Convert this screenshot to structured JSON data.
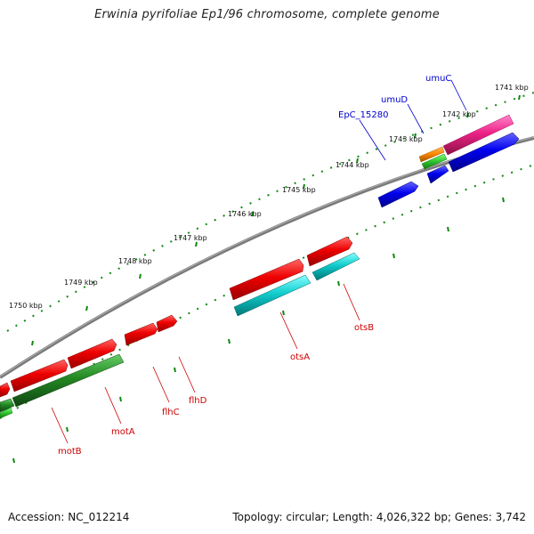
{
  "title": "Erwinia pyrifoliae Ep1/96 chromosome, complete genome",
  "footer": {
    "accession": "Accession: NC_012214",
    "stats": "Topology: circular; Length: 4,026,322 bp; Genes: 3,742"
  },
  "ticks": [
    {
      "label": "1741 kbp"
    },
    {
      "label": "1742 kbp"
    },
    {
      "label": "1743 kbp"
    },
    {
      "label": "1744 kbp"
    },
    {
      "label": "1745 kbp"
    },
    {
      "label": "1746 kbp"
    },
    {
      "label": "1747 kbp"
    },
    {
      "label": "1748 kbp"
    },
    {
      "label": "1749 kbp"
    },
    {
      "label": "1750 kbp"
    }
  ],
  "gene_labels": [
    {
      "name": "umuC",
      "color": "#0000cc"
    },
    {
      "name": "umuD",
      "color": "#0000cc"
    },
    {
      "name": "EpC_15280",
      "color": "#0000cc"
    },
    {
      "name": "otsB",
      "color": "#cc0000"
    },
    {
      "name": "otsA",
      "color": "#cc0000"
    },
    {
      "name": "flhD",
      "color": "#cc0000"
    },
    {
      "name": "flhC",
      "color": "#cc0000"
    },
    {
      "name": "motA",
      "color": "#cc0000"
    },
    {
      "name": "motB",
      "color": "#cc0000"
    }
  ],
  "colors": {
    "backbone": "#808080",
    "tick": "#118811",
    "red_gene": "#ee0000",
    "cyan_gene": "#11cccc",
    "blue_gene": "#0000ee",
    "green_gene": "#228822",
    "magenta_gene": "#ee2288",
    "orange_gene": "#ff8800",
    "lightgreen_gene": "#33cc33"
  }
}
